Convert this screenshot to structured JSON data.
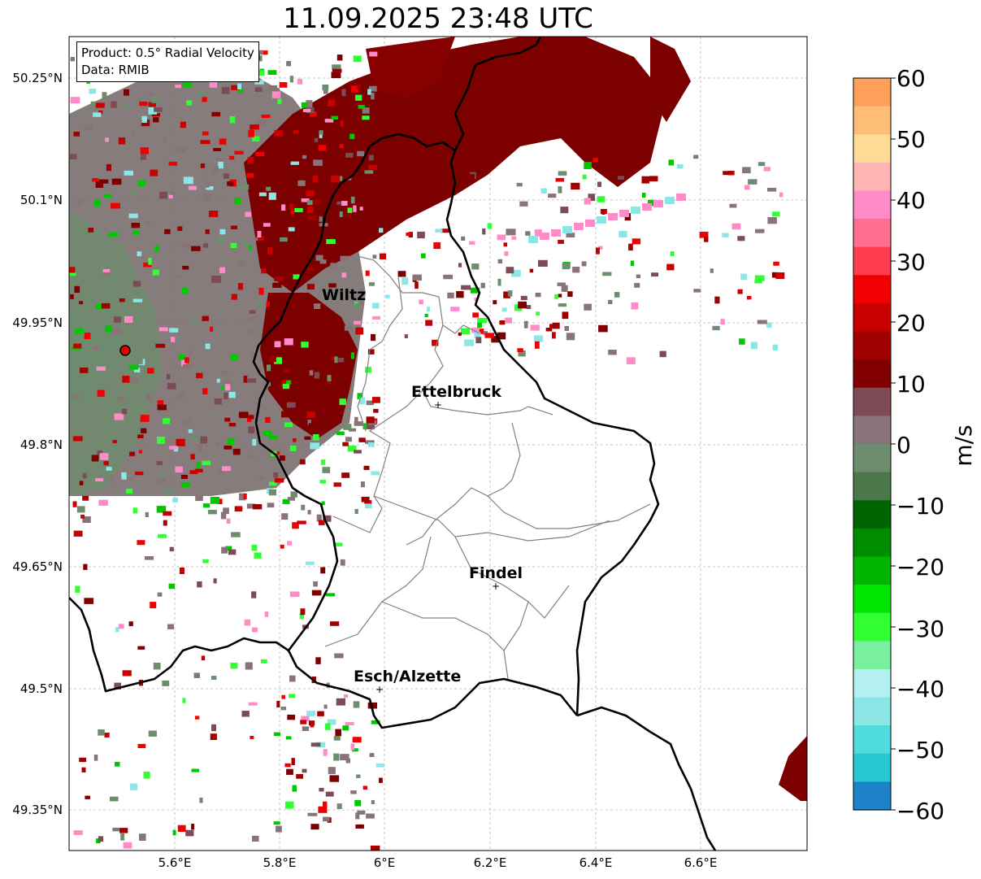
{
  "title": "11.09.2025 23:48 UTC",
  "info": {
    "product": "Product: 0.5° Radial Velocity",
    "data": "Data: RMIB"
  },
  "axes": {
    "x_ticks": [
      "5.6°E",
      "5.8°E",
      "6°E",
      "6.2°E",
      "6.4°E",
      "6.6°E"
    ],
    "y_ticks": [
      "50.25°N",
      "50.1°N",
      "49.95°N",
      "49.8°N",
      "49.65°N",
      "49.5°N",
      "49.35°N"
    ]
  },
  "places": [
    {
      "name": "Wiltz"
    },
    {
      "name": "Ettelbruck"
    },
    {
      "name": "Findel"
    },
    {
      "name": "Esch/Alzette"
    }
  ],
  "colorbar": {
    "label": "m/s",
    "ticks": [
      "60",
      "50",
      "40",
      "30",
      "20",
      "10",
      "0",
      "−10",
      "−20",
      "−30",
      "−40",
      "−50",
      "−60"
    ],
    "colors": [
      "#ffa05a",
      "#ffbe78",
      "#ffdc96",
      "#ffb4b4",
      "#ff8cc8",
      "#ff6e8c",
      "#ff3c50",
      "#f00000",
      "#c80000",
      "#a00000",
      "#820000",
      "#7d4b55",
      "#877378",
      "#6e8c6e",
      "#4b784b",
      "#006400",
      "#008c00",
      "#00b400",
      "#00e600",
      "#32ff32",
      "#78f0a0",
      "#b4f0f0",
      "#8ce6e6",
      "#50dcdc",
      "#28c8d2",
      "#1e82c8"
    ]
  },
  "radar_site_color": "#e00000"
}
